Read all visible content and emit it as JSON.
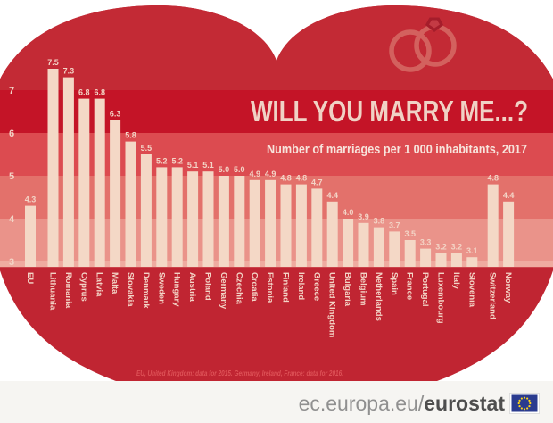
{
  "header": {
    "title": "WILL YOU MARRY ME...?",
    "subtitle": "Number of marriages per 1 000 inhabitants, 2017"
  },
  "footnote": "EU, United Kingdom: data for 2015.  Germany, Ireland, France: data for 2016.",
  "footer": {
    "url_prefix": "ec.europa.eu/",
    "url_bold": "eurostat"
  },
  "icons": {
    "rings": "wedding-rings-icon",
    "flag": "eu-flag-icon"
  },
  "colors": {
    "heart": "#c02532",
    "band_above_7": "#c32a35",
    "band_6_7": "#c41427",
    "band_5_6": "#dc4b50",
    "band_4_5": "#e3716b",
    "band_3_4": "#ea938a",
    "band_below_3": "#efaba0",
    "bar": "#f4d8c6",
    "bar_label": "#f3d4c6",
    "axis_label": "#f3d4c6",
    "country_label": "#f3d4c6",
    "title_text": "#f0d2c5",
    "subtitle_text": "#f7e4dc",
    "footnote_text": "#de5257",
    "rings": "#d3615e",
    "diamond": "#a51d2b",
    "diamond_facet": "#c43a44",
    "footer_bg": "#f6f5f2",
    "footer_text": "#909090",
    "footer_text_bold": "#4e4e4e",
    "flag_blue": "#2a3b8f",
    "flag_stars": "#ffd617"
  },
  "chart_data": {
    "type": "bar",
    "title": "WILL YOU MARRY ME...?",
    "subtitle": "Number of marriages per 1 000 inhabitants, 2017",
    "year": "2017",
    "ylabel": "marriages per 1 000 inhabitants",
    "ylim": [
      3,
      8
    ],
    "yticks": [
      7,
      6,
      5,
      4,
      3
    ],
    "grid": "horizontal striped bands at integer values",
    "legend": "none",
    "categories": [
      "EU",
      "Lithuania",
      "Romania",
      "Cyprus",
      "Latvia",
      "Malta",
      "Slovakia",
      "Denmark",
      "Sweden",
      "Hungary",
      "Austria",
      "Poland",
      "Germany",
      "Czechia",
      "Croatia",
      "Estonia",
      "Finland",
      "Ireland",
      "Greece",
      "United Kingdom",
      "Bulgaria",
      "Belgium",
      "Netherlands",
      "Spain",
      "France",
      "Portugal",
      "Luxembourg",
      "Italy",
      "Slovenia",
      "Switzerland",
      "Norway"
    ],
    "values": [
      4.3,
      7.5,
      7.3,
      6.8,
      6.8,
      6.3,
      5.8,
      5.5,
      5.2,
      5.2,
      5.1,
      5.1,
      5.0,
      5.0,
      4.9,
      4.9,
      4.8,
      4.8,
      4.7,
      4.4,
      4.0,
      3.9,
      3.8,
      3.7,
      3.5,
      3.3,
      3.2,
      3.2,
      3.1,
      4.8,
      4.4
    ],
    "separators_after": [
      "EU",
      "Slovenia"
    ],
    "note": "EU, United Kingdom: data for 2015.  Germany, Ireland, France: data for 2016.",
    "bands": [
      {
        "from": 7,
        "to": 99,
        "color_key": "band_above_7"
      },
      {
        "from": 6,
        "to": 7,
        "color_key": "band_6_7"
      },
      {
        "from": 5,
        "to": 6,
        "color_key": "band_5_6"
      },
      {
        "from": 4,
        "to": 5,
        "color_key": "band_4_5"
      },
      {
        "from": 3,
        "to": 4,
        "color_key": "band_3_4"
      },
      {
        "from": 2.87,
        "to": 3,
        "color_key": "band_below_3"
      }
    ]
  }
}
